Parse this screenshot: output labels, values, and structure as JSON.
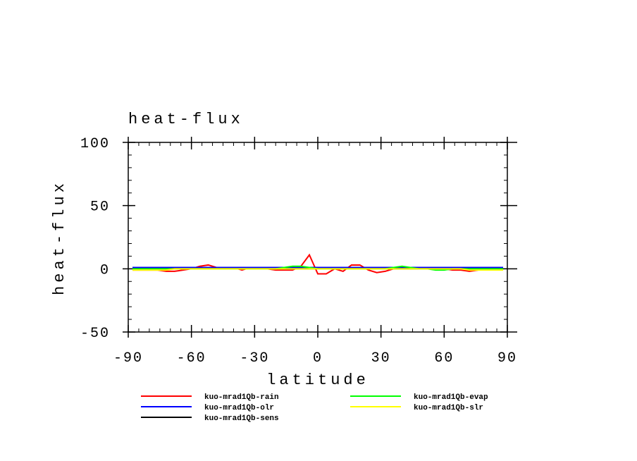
{
  "chart_data": {
    "type": "line",
    "title": "heat-flux",
    "x_label": "latitude",
    "y_label": "heat-flux",
    "x": [
      -88,
      -84,
      -80,
      -76,
      -72,
      -68,
      -64,
      -60,
      -56,
      -52,
      -48,
      -44,
      -40,
      -36,
      -32,
      -28,
      -24,
      -20,
      -16,
      -12,
      -8,
      -4,
      0,
      4,
      8,
      12,
      16,
      20,
      24,
      28,
      32,
      36,
      40,
      44,
      48,
      52,
      56,
      60,
      64,
      68,
      72,
      76,
      80,
      84,
      88
    ],
    "series": [
      {
        "name": "kuo-mrad1Qb-rain",
        "color": "#ff0000",
        "values": [
          -1,
          -1,
          -1,
          -1,
          -2,
          -2,
          -1,
          0,
          2,
          3,
          1,
          0,
          1,
          -1,
          1,
          1,
          0,
          -1,
          -1,
          -1,
          2,
          11,
          -4,
          -4,
          0,
          -2,
          3,
          3,
          -1,
          -3,
          -2,
          0,
          1,
          0,
          1,
          0,
          0,
          0,
          -1,
          -1,
          -2,
          -1,
          0,
          0,
          0
        ]
      },
      {
        "name": "kuo-mrad1Qb-olr",
        "color": "#0000ff",
        "values": [
          1,
          1,
          1,
          1,
          1,
          1,
          1,
          1,
          1,
          1,
          1,
          1,
          1,
          1,
          1,
          1,
          1,
          1,
          1,
          1,
          1,
          1,
          1,
          1,
          1,
          1,
          1,
          1,
          1,
          1,
          1,
          1,
          1,
          1,
          1,
          1,
          1,
          1,
          1,
          1,
          1,
          1,
          1,
          1,
          1
        ]
      },
      {
        "name": "kuo-mrad1Qb-sens",
        "color": "#000000",
        "values": [
          0,
          0,
          0,
          0,
          0,
          0,
          0,
          0,
          0,
          0,
          0,
          0,
          0,
          0,
          0,
          0,
          0,
          0,
          0,
          0,
          0,
          0,
          0,
          0,
          0,
          0,
          0,
          0,
          0,
          0,
          0,
          0,
          0,
          0,
          0,
          0,
          0,
          0,
          0,
          0,
          0,
          0,
          0,
          0,
          0
        ]
      },
      {
        "name": "kuo-mrad1Qb-evap",
        "color": "#00ff00",
        "values": [
          0,
          0,
          0,
          0,
          0,
          0,
          0,
          0,
          0,
          0,
          0,
          0,
          0,
          0,
          0,
          0,
          0,
          0,
          1,
          2,
          2,
          1,
          0,
          0,
          0,
          0,
          0,
          0,
          0,
          0,
          0,
          1,
          2,
          1,
          0,
          0,
          -1,
          -1,
          0,
          0,
          0,
          0,
          0,
          0,
          0
        ]
      },
      {
        "name": "kuo-mrad1Qb-slr",
        "color": "#ffff00",
        "values": [
          -1,
          -1,
          -1,
          -1,
          -1,
          0,
          0,
          0,
          0,
          0,
          0,
          0,
          0,
          0,
          0,
          0,
          0,
          0,
          0,
          0,
          0,
          0,
          0,
          0,
          0,
          0,
          0,
          0,
          0,
          0,
          0,
          0,
          0,
          0,
          0,
          0,
          0,
          0,
          0,
          0,
          -1,
          -1,
          -1,
          -1,
          -1
        ]
      }
    ],
    "xlim": [
      -90,
      90
    ],
    "xticks": [
      -90,
      -60,
      -30,
      0,
      30,
      60,
      90
    ],
    "ylim": [
      -50,
      100
    ],
    "yticks": [
      -50,
      0,
      50,
      100
    ]
  }
}
